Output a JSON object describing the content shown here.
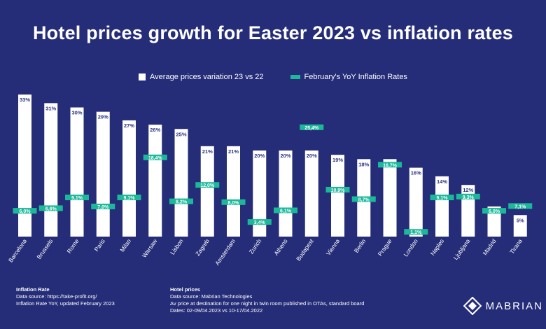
{
  "title": "Hotel prices growth for Easter 2023 vs inflation rates",
  "legend": {
    "bars_label": "Average prices variation 23 vs 22",
    "inflation_label": "February's YoY Inflation Rates"
  },
  "colors": {
    "background": "#252d78",
    "bar_fill": "#ffffff",
    "inflation": "#1bb99a",
    "bar_label": "#2b3380"
  },
  "chart_data": {
    "type": "bar",
    "title": "Hotel prices growth for Easter 2023 vs inflation rates",
    "categories": [
      "Barcelona",
      "Brussels",
      "Rome",
      "Paris",
      "Milan",
      "Warsaw",
      "Lisbon",
      "Zagreb",
      "Amsterdam",
      "Zurich",
      "Athens",
      "Budapest",
      "Vienna",
      "Berlin",
      "Prague",
      "London",
      "Naples",
      "Ljubljana",
      "Madrid",
      "Tirana"
    ],
    "series": [
      {
        "name": "Average prices variation 23 vs 22",
        "type": "bar",
        "values": [
          33,
          31,
          30,
          29,
          27,
          26,
          25,
          21,
          21,
          20,
          20,
          20,
          19,
          18,
          18,
          16,
          14,
          12,
          7,
          5
        ],
        "labels": [
          "33%",
          "31%",
          "30%",
          "29%",
          "27%",
          "26%",
          "25%",
          "21%",
          "21%",
          "20%",
          "20%",
          "20%",
          "19%",
          "18%",
          "18%",
          "16%",
          "14%",
          "12%",
          "7%",
          "5%"
        ]
      },
      {
        "name": "February's YoY Inflation Rates",
        "type": "marker",
        "values": [
          6.0,
          6.6,
          9.1,
          7.0,
          9.1,
          18.4,
          8.2,
          12.0,
          8.0,
          3.4,
          6.1,
          25.4,
          10.9,
          8.7,
          16.7,
          1.1,
          9.1,
          9.3,
          6.0,
          7.1
        ],
        "labels": [
          "6,0%",
          "6,6%",
          "9,1%",
          "7,0%",
          "9,1%",
          "18,4%",
          "8,2%",
          "12,0%",
          "8,0%",
          "3,4%",
          "6,1%",
          "25,4%",
          "10,9%",
          "8,7%",
          "16,7%",
          "1,1%",
          "9,1%",
          "9,3%",
          "6,0%",
          "7,1%"
        ]
      }
    ],
    "legend_position": "top-center",
    "grid": false
  },
  "footer": {
    "left": {
      "title": "Inflation Rate",
      "line1": "Data source: https://take-profit.org/",
      "line2": "Inflation Rate YoY, updated February 2023"
    },
    "right": {
      "title": "Hotel prices",
      "line1": "Data source: Mabrian Technologies",
      "line2": "Av price at destination for one night in twin room published in OTAs, standard board",
      "line3": "Dates: 02-09/04.2023 vs 10-17/04.2022"
    }
  },
  "brand": {
    "name": "MABRIAN",
    "icon": "mabrian-logo-icon"
  }
}
